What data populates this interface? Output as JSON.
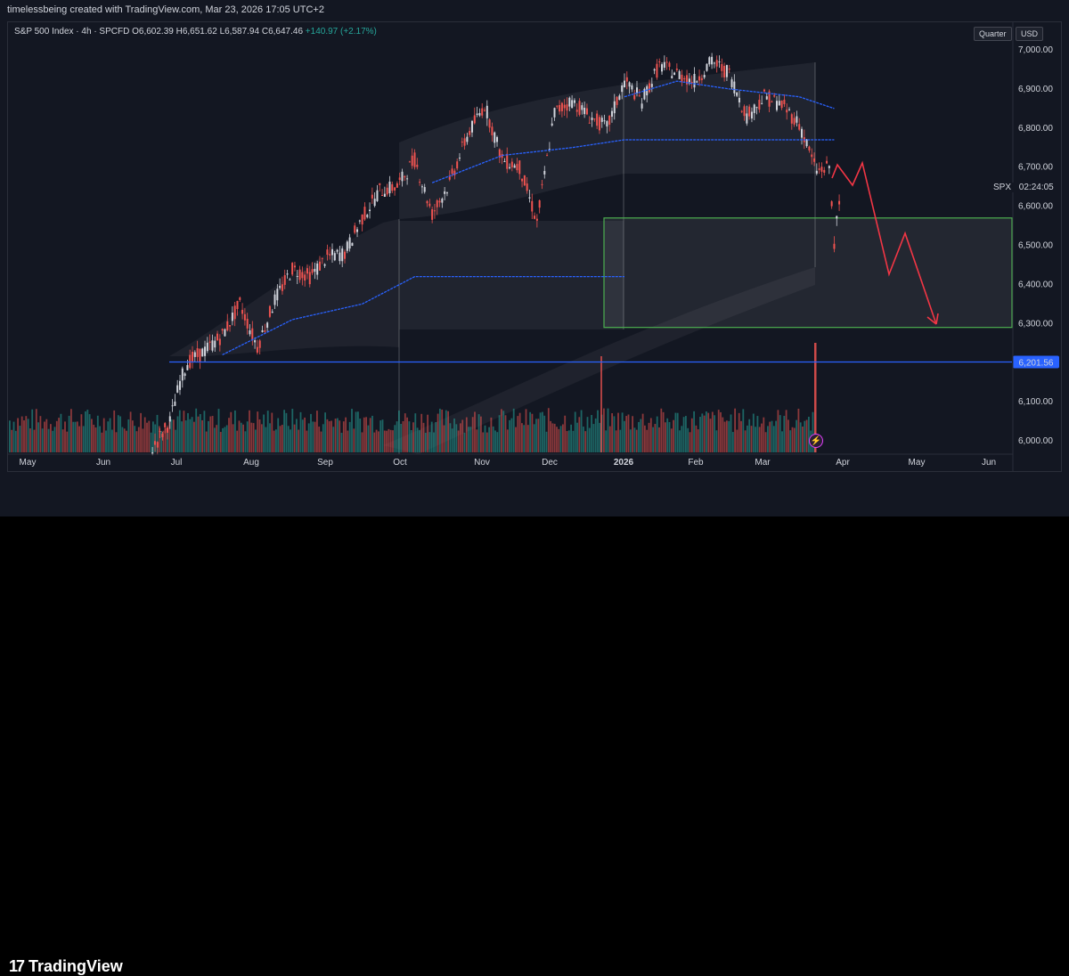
{
  "header": {
    "credit": "timelessbeing created with TradingView.com, Mar 23, 2026 17:05 UTC+2",
    "symbol": "S&P 500 Index · 4h · SPCFD",
    "o_label": "O",
    "o_value": "6,602.39",
    "h_label": "H",
    "h_value": "6,651.62",
    "l_label": "L",
    "l_value": "6,587.94",
    "c_label": "C",
    "c_value": "6,647.46",
    "change": "+140.97 (+2.17%)",
    "quarter_button": "Quarter",
    "currency_button": "USD"
  },
  "price_axis": {
    "labels": [
      "7,000.00",
      "6,900.00",
      "6,800.00",
      "6,700.00",
      "6,600.00",
      "6,500.00",
      "6,400.00",
      "6,300.00",
      "6,100.00",
      "6,000.00"
    ],
    "spx_tag": "SPX",
    "countdown": "02:24:05",
    "support_tag": "6,201.56"
  },
  "time_axis": {
    "labels": [
      "May",
      "Jun",
      "Jul",
      "Aug",
      "Sep",
      "Oct",
      "Nov",
      "Dec",
      "2026",
      "Feb",
      "Mar",
      "Apr",
      "May",
      "Jun"
    ]
  },
  "footer": {
    "brand": "TradingView",
    "logo_mark": "17"
  },
  "colors": {
    "up": "#d1d4dc",
    "down": "#ef5350",
    "support": "#2962ff",
    "box": "#4caf50",
    "projection": "#f23645",
    "vwap": "#2962ff"
  },
  "chart_data": {
    "type": "candlestick",
    "title": "S&P 500 Index · 4h · SPCFD",
    "ylim": [
      6000,
      7000
    ],
    "support_level": 6201.56,
    "demand_zone": {
      "low": 6290,
      "high": 6570,
      "start": "Dec 26",
      "end": "Jun"
    },
    "projection_path": [
      {
        "x": "Mar 26",
        "y": 6670
      },
      {
        "x": "Mar 28",
        "y": 6710
      },
      {
        "x": "Apr 1",
        "y": 6660
      },
      {
        "x": "Apr 5",
        "y": 6710
      },
      {
        "x": "Apr 20",
        "y": 6420
      },
      {
        "x": "Apr 28",
        "y": 6530
      },
      {
        "x": "May 12",
        "y": 6290
      }
    ],
    "series": [
      {
        "x": "Jun 20",
        "y": 5980
      },
      {
        "x": "Jun 27",
        "y": 6050
      },
      {
        "x": "Jul 1",
        "y": 6150
      },
      {
        "x": "Jul 4",
        "y": 6200
      },
      {
        "x": "Jul 11",
        "y": 6230
      },
      {
        "x": "Jul 18",
        "y": 6270
      },
      {
        "x": "Jul 25",
        "y": 6350
      },
      {
        "x": "Aug 1",
        "y": 6240
      },
      {
        "x": "Aug 8",
        "y": 6360
      },
      {
        "x": "Aug 15",
        "y": 6440
      },
      {
        "x": "Aug 22",
        "y": 6420
      },
      {
        "x": "Aug 29",
        "y": 6470
      },
      {
        "x": "Sep 5",
        "y": 6480
      },
      {
        "x": "Sep 12",
        "y": 6570
      },
      {
        "x": "Sep 19",
        "y": 6640
      },
      {
        "x": "Sep 26",
        "y": 6650
      },
      {
        "x": "Oct 3",
        "y": 6720
      },
      {
        "x": "Oct 10",
        "y": 6580
      },
      {
        "x": "Oct 17",
        "y": 6660
      },
      {
        "x": "Oct 24",
        "y": 6780
      },
      {
        "x": "Oct 31",
        "y": 6860
      },
      {
        "x": "Nov 7",
        "y": 6720
      },
      {
        "x": "Nov 14",
        "y": 6700
      },
      {
        "x": "Nov 21",
        "y": 6560
      },
      {
        "x": "Nov 28",
        "y": 6840
      },
      {
        "x": "Dec 5",
        "y": 6870
      },
      {
        "x": "Dec 12",
        "y": 6830
      },
      {
        "x": "Dec 19",
        "y": 6800
      },
      {
        "x": "Dec 26",
        "y": 6920
      },
      {
        "x": "Jan 2",
        "y": 6870
      },
      {
        "x": "Jan 9",
        "y": 6960
      },
      {
        "x": "Jan 16",
        "y": 6940
      },
      {
        "x": "Jan 23",
        "y": 6920
      },
      {
        "x": "Jan 30",
        "y": 6970
      },
      {
        "x": "Feb 6",
        "y": 6940
      },
      {
        "x": "Feb 13",
        "y": 6830
      },
      {
        "x": "Feb 20",
        "y": 6880
      },
      {
        "x": "Feb 27",
        "y": 6860
      },
      {
        "x": "Mar 6",
        "y": 6810
      },
      {
        "x": "Mar 13",
        "y": 6690
      },
      {
        "x": "Mar 18",
        "y": 6700
      },
      {
        "x": "Mar 20",
        "y": 6510
      },
      {
        "x": "Mar 23",
        "y": 6647
      }
    ],
    "vwap_mid": [
      {
        "x": "Jul 18",
        "y": 6220
      },
      {
        "x": "Aug 15",
        "y": 6310
      },
      {
        "x": "Sep 12",
        "y": 6350
      },
      {
        "x": "Oct 3",
        "y": 6420
      },
      {
        "x": "Dec 26",
        "y": 6420
      }
    ],
    "vwap_upper": [
      {
        "x": "Oct 10",
        "y": 6660
      },
      {
        "x": "Nov 7",
        "y": 6730
      },
      {
        "x": "Dec 5",
        "y": 6750
      },
      {
        "x": "Dec 26",
        "y": 6770
      },
      {
        "x": "Mar 20",
        "y": 6770
      }
    ],
    "vwap_top": [
      {
        "x": "Dec 26",
        "y": 6880
      },
      {
        "x": "Jan 16",
        "y": 6920
      },
      {
        "x": "Feb 6",
        "y": 6900
      },
      {
        "x": "Mar 6",
        "y": 6880
      },
      {
        "x": "Mar 20",
        "y": 6850
      }
    ]
  }
}
